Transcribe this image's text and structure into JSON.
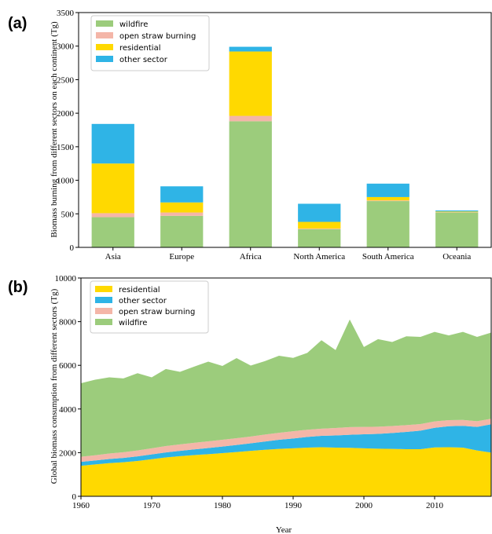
{
  "chart_data": [
    {
      "panel_label": "(a)",
      "type": "bar",
      "stacked": true,
      "categories": [
        "Asia",
        "Europe",
        "Africa",
        "North America",
        "South America",
        "Oceania"
      ],
      "series": [
        {
          "name": "wildfire",
          "color": "#9ccc7c",
          "values": [
            450,
            470,
            1880,
            270,
            690,
            520
          ]
        },
        {
          "name": "open straw burning",
          "color": "#f4b6a8",
          "values": [
            60,
            50,
            80,
            10,
            10,
            5
          ]
        },
        {
          "name": "residential",
          "color": "#ffd900",
          "values": [
            740,
            150,
            960,
            100,
            50,
            10
          ]
        },
        {
          "name": "other sector",
          "color": "#2fb4e6",
          "values": [
            590,
            240,
            70,
            270,
            200,
            15
          ]
        }
      ],
      "ylabel": "Biomass burning from different sectors on each continent (Tg)",
      "ylim": [
        0,
        3500
      ],
      "yticks": [
        0,
        500,
        1000,
        1500,
        2000,
        2500,
        3000,
        3500
      ],
      "legend": "top-left",
      "grid": false
    },
    {
      "panel_label": "(b)",
      "type": "area",
      "stacked": true,
      "x": [
        1960,
        1962,
        1964,
        1966,
        1968,
        1970,
        1972,
        1974,
        1976,
        1978,
        1980,
        1982,
        1984,
        1986,
        1988,
        1990,
        1992,
        1994,
        1996,
        1998,
        2000,
        2002,
        2004,
        2006,
        2008,
        2010,
        2012,
        2014,
        2016,
        2018
      ],
      "series": [
        {
          "name": "residential",
          "color": "#ffd900",
          "values": [
            1400,
            1460,
            1520,
            1560,
            1620,
            1700,
            1780,
            1840,
            1890,
            1930,
            1980,
            2030,
            2080,
            2130,
            2170,
            2200,
            2230,
            2250,
            2230,
            2220,
            2200,
            2180,
            2170,
            2160,
            2160,
            2240,
            2250,
            2230,
            2100,
            2000
          ]
        },
        {
          "name": "other sector",
          "color": "#2fb4e6",
          "values": [
            180,
            180,
            190,
            200,
            210,
            220,
            230,
            240,
            260,
            280,
            300,
            320,
            350,
            380,
            420,
            450,
            490,
            520,
            560,
            600,
            640,
            680,
            730,
            790,
            850,
            900,
            960,
            1000,
            1080,
            1300
          ]
        },
        {
          "name": "open straw burning",
          "color": "#f4b6a8",
          "values": [
            230,
            240,
            250,
            260,
            270,
            280,
            290,
            300,
            300,
            310,
            310,
            310,
            310,
            320,
            320,
            330,
            330,
            330,
            340,
            350,
            340,
            330,
            320,
            310,
            300,
            290,
            280,
            270,
            260,
            250
          ]
        },
        {
          "name": "wildfire",
          "color": "#9ccc7c",
          "values": [
            3370,
            3460,
            3490,
            3380,
            3540,
            3250,
            3530,
            3320,
            3490,
            3650,
            3380,
            3670,
            3250,
            3360,
            3530,
            3360,
            3520,
            4050,
            3570,
            4930,
            3660,
            4010,
            3850,
            4070,
            3990,
            4100,
            3880,
            4030,
            3860,
            3950
          ]
        }
      ],
      "xlabel": "Year",
      "ylabel": "Global biomass consumption from different sectors (Tg)",
      "xlim": [
        1960,
        2018
      ],
      "ylim": [
        0,
        10000
      ],
      "xticks": [
        1960,
        1970,
        1980,
        1990,
        2000,
        2010
      ],
      "yticks": [
        0,
        2000,
        4000,
        6000,
        8000,
        10000
      ],
      "legend": "top-left",
      "grid": false
    }
  ]
}
